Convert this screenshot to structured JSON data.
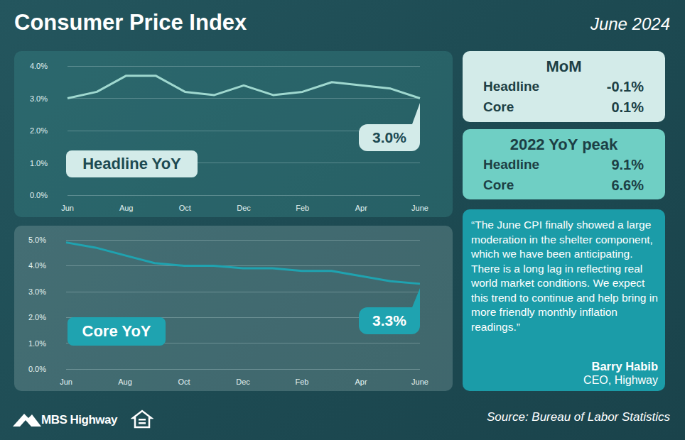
{
  "header": {
    "title": "Consumer Price Index",
    "date": "June 2024"
  },
  "chart_data": [
    {
      "type": "line",
      "title": "Headline YoY",
      "categories": [
        "Jun",
        null,
        "Aug",
        null,
        "Oct",
        null,
        "Dec",
        null,
        "Feb",
        null,
        "Apr",
        null,
        "June"
      ],
      "values": [
        3.0,
        3.2,
        3.7,
        3.7,
        3.2,
        3.1,
        3.4,
        3.1,
        3.2,
        3.5,
        3.4,
        3.3,
        3.0
      ],
      "color": "#9fd8cf",
      "ylim": [
        0,
        4
      ],
      "yticks": [
        {
          "value": 0,
          "label": "0.0%"
        },
        {
          "value": 1,
          "label": "1.0%"
        },
        {
          "value": 2,
          "label": "2.0%"
        },
        {
          "value": 3,
          "label": "3.0%"
        },
        {
          "value": 4,
          "label": "4.0%"
        }
      ],
      "grid": true,
      "annotation": "3.0%"
    },
    {
      "type": "line",
      "title": "Core YoY",
      "categories": [
        "Jun",
        null,
        "Aug",
        null,
        "Oct",
        null,
        "Dec",
        null,
        "Feb",
        null,
        "Apr",
        null,
        "June"
      ],
      "values": [
        4.9,
        4.7,
        4.4,
        4.1,
        4.0,
        4.0,
        3.9,
        3.9,
        3.8,
        3.8,
        3.6,
        3.4,
        3.3
      ],
      "color": "#1fa3b0",
      "ylim": [
        0,
        5
      ],
      "yticks": [
        {
          "value": 0,
          "label": "0.0%"
        },
        {
          "value": 1,
          "label": "1.0%"
        },
        {
          "value": 2,
          "label": "2.0%"
        },
        {
          "value": 3,
          "label": "3.0%"
        },
        {
          "value": 4,
          "label": "4.0%"
        },
        {
          "value": 5,
          "label": "5.0%"
        }
      ],
      "grid": true,
      "annotation": "3.3%"
    }
  ],
  "panels": [
    {
      "title": "MoM",
      "rows": [
        {
          "label": "Headline",
          "value": "-0.1%"
        },
        {
          "label": "Core",
          "value": "0.1%"
        }
      ]
    },
    {
      "title": "2022 YoY peak",
      "rows": [
        {
          "label": "Headline",
          "value": "9.1%"
        },
        {
          "label": "Core",
          "value": "6.6%"
        }
      ]
    }
  ],
  "quote": {
    "text": "“The June CPI finally showed a large moderation in the shelter component, which we have been anticipating. There is a long lag in reflecting real world market conditions. We expect this trend to continue and help bring in more friendly monthly inflation readings.”",
    "author": "Barry Habib",
    "role": "CEO, Highway"
  },
  "footer": {
    "logo": "MBS Highway",
    "source": "Source: Bureau of Labor Statistics"
  }
}
